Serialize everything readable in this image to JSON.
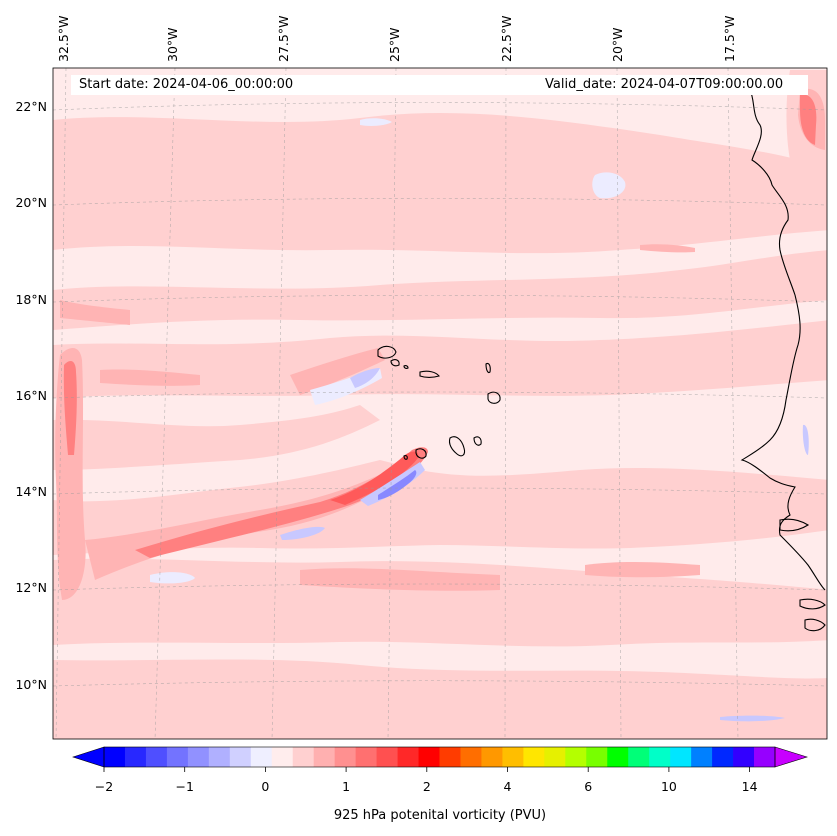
{
  "info": {
    "start_date": "Start date: 2024-04-06_00:00:00",
    "valid_date": "Valid_date: 2024-04-07T09:00:00.00"
  },
  "axes": {
    "lon_labels": [
      "32.5°W",
      "30°W",
      "27.5°W",
      "25°W",
      "22.5°W",
      "20°W",
      "17.5°W"
    ],
    "lat_labels": [
      "22°N",
      "20°N",
      "18°N",
      "16°N",
      "14°N",
      "12°N",
      "10°N"
    ]
  },
  "colorbar": {
    "title": "925 hPa potenital vorticity (PVU)",
    "tick_labels": [
      "−2",
      "−1",
      "0",
      "1",
      "2",
      "4",
      "6",
      "10",
      "14"
    ],
    "colors": [
      "#0000ff",
      "#2828ff",
      "#4f4fff",
      "#7373ff",
      "#9191ff",
      "#b0b0ff",
      "#d0d0ff",
      "#efefff",
      "#ffeded",
      "#ffd0d0",
      "#ffb0b0",
      "#ff9090",
      "#ff7070",
      "#ff5050",
      "#ff2828",
      "#ff0000",
      "#ff3c00",
      "#ff6e00",
      "#ff9800",
      "#ffbe00",
      "#ffe600",
      "#e6f000",
      "#b4ff00",
      "#78ff00",
      "#00ff00",
      "#00ff78",
      "#00ffc8",
      "#00e6ff",
      "#0080ff",
      "#0028ff",
      "#3200ff",
      "#9600ff"
    ]
  },
  "fill_colors": {
    "background": "#ffebeb",
    "light_pink": "#ffd0d0",
    "pink": "#ffb4b4",
    "red": "#ff8080",
    "strong_red": "#ff5a5a",
    "light_blue": "#ececff",
    "blue": "#c8c8ff",
    "strong_blue": "#8888ff"
  }
}
